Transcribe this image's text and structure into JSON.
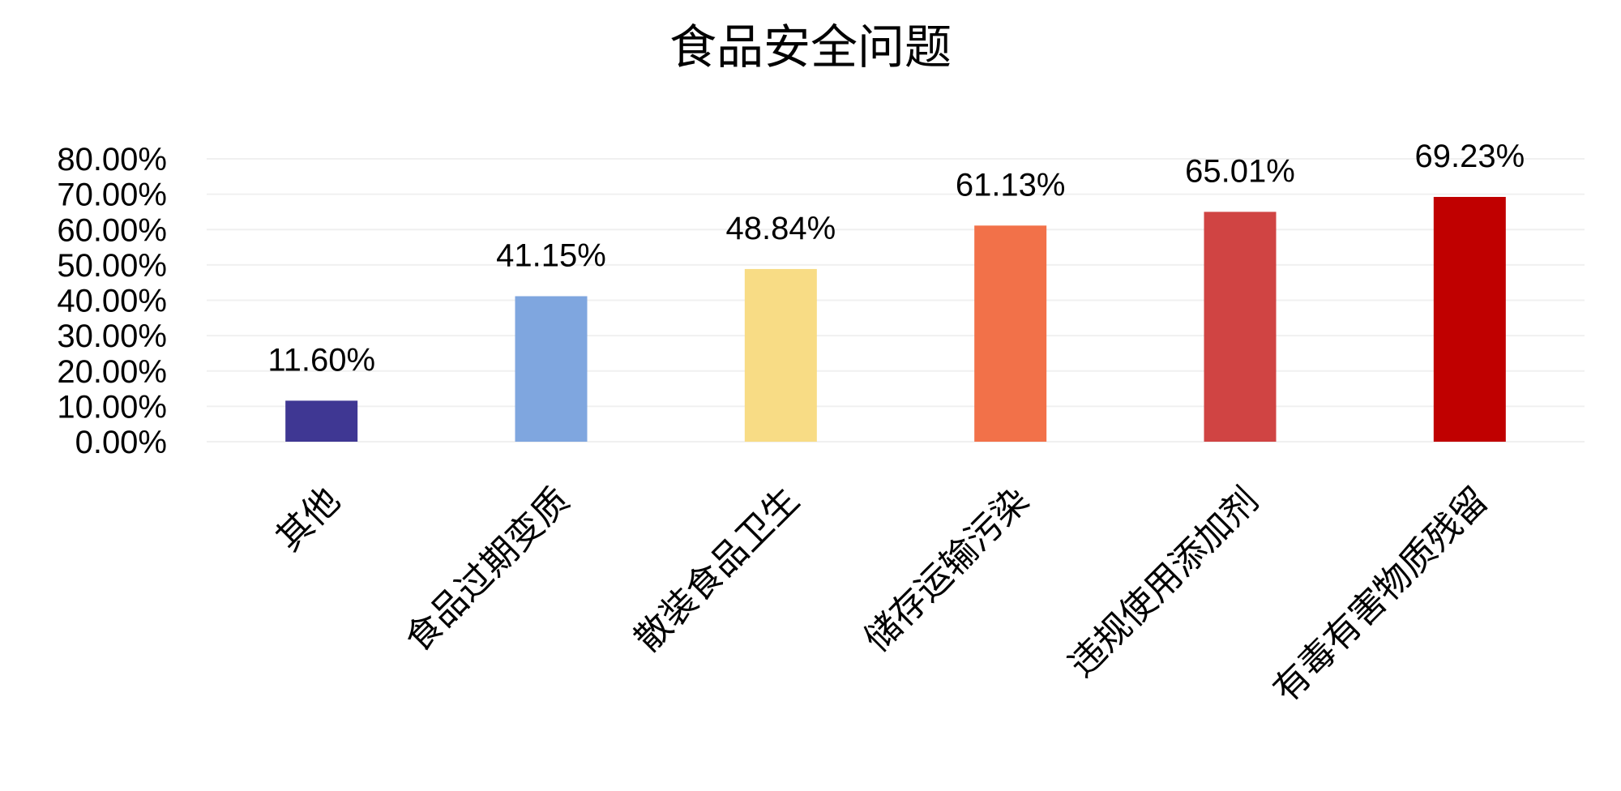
{
  "chart_data": {
    "type": "bar",
    "title": "食品安全问题",
    "xlabel": "",
    "ylabel": "",
    "categories": [
      "其他",
      "食品过期变质",
      "散装食品卫生",
      "储存运输污染",
      "违规使用添加剂",
      "有毒有害物质残留"
    ],
    "values": [
      11.6,
      41.15,
      48.84,
      61.13,
      65.01,
      69.23
    ],
    "data_labels": [
      "11.60%",
      "41.15%",
      "48.84%",
      "61.13%",
      "65.01%",
      "69.23%"
    ],
    "colors": [
      "#3f3793",
      "#7fa6df",
      "#f8dc85",
      "#f27149",
      "#d04443",
      "#c00000"
    ],
    "ylim": [
      0,
      80
    ],
    "yticks": [
      0,
      10,
      20,
      30,
      40,
      50,
      60,
      70,
      80
    ],
    "ytick_labels": [
      "0.00%",
      "10.00%",
      "20.00%",
      "30.00%",
      "40.00%",
      "50.00%",
      "60.00%",
      "70.00%",
      "80.00%"
    ],
    "grid": true,
    "legend": "none"
  }
}
